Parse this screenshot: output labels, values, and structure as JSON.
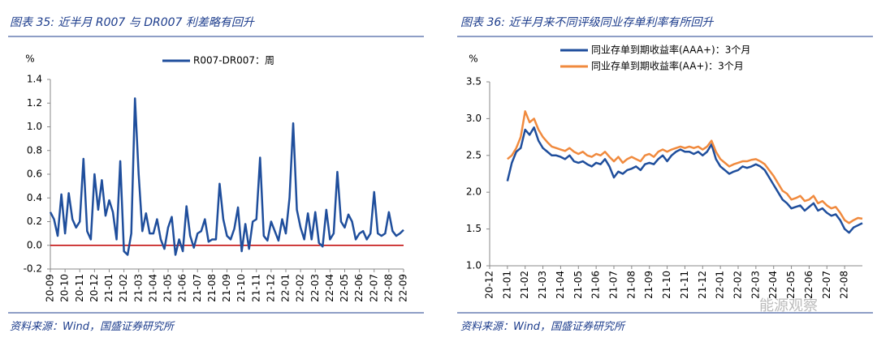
{
  "watermark": "能源观察",
  "chart_data": [
    {
      "type": "line",
      "title": "图表 35:  近半月 R007 与 DR007 利差略有回升",
      "source": "资料来源：Wind，国盛证券研究所",
      "y_unit": "%",
      "ylim": [
        -0.2,
        1.4
      ],
      "yticks": [
        -0.2,
        {
          "value": 0,
          "label": "0.0"
        },
        0.2,
        0.4,
        0.6,
        0.8,
        {
          "value": 1,
          "label": "1.0"
        },
        1.2,
        1.4
      ],
      "zero_line_color": "#c00000",
      "legend": "top",
      "categories": [
        "20-09",
        null,
        null,
        null,
        "20-10",
        null,
        null,
        null,
        "20-11",
        null,
        null,
        null,
        "20-12",
        null,
        null,
        null,
        "21-01",
        null,
        null,
        null,
        "21-02",
        null,
        null,
        null,
        "21-03",
        null,
        null,
        null,
        "21-04",
        null,
        null,
        null,
        "21-05",
        null,
        null,
        null,
        "21-06",
        null,
        null,
        null,
        "21-07",
        null,
        null,
        null,
        "21-08",
        null,
        null,
        null,
        "21-09",
        null,
        null,
        null,
        "21-10",
        null,
        null,
        null,
        "21-11",
        null,
        null,
        null,
        "21-12",
        null,
        null,
        null,
        "22-01",
        null,
        null,
        null,
        "22-02",
        null,
        null,
        null,
        "22-03",
        null,
        null,
        null,
        "22-04",
        null,
        null,
        null,
        "22-05",
        null,
        null,
        null,
        "22-06",
        null,
        null,
        null,
        "22-07",
        null,
        null,
        null,
        "22-08",
        null,
        null,
        null,
        "22-09"
      ],
      "series": [
        {
          "name": "R007-DR007：周",
          "color": "#1f4e9c",
          "values": [
            0.28,
            0.22,
            0.08,
            0.43,
            0.1,
            0.44,
            0.22,
            0.15,
            0.2,
            0.73,
            0.12,
            0.05,
            0.6,
            0.3,
            0.55,
            0.25,
            0.38,
            0.28,
            0.05,
            0.71,
            -0.05,
            -0.08,
            0.1,
            1.24,
            0.6,
            0.12,
            0.27,
            0.1,
            0.1,
            0.22,
            0.05,
            -0.03,
            0.15,
            0.24,
            -0.08,
            0.05,
            -0.05,
            0.33,
            0.08,
            -0.02,
            0.1,
            0.12,
            0.22,
            0.03,
            0.05,
            0.05,
            0.52,
            0.22,
            0.08,
            0.05,
            0.14,
            0.32,
            -0.05,
            0.18,
            -0.03,
            0.2,
            0.22,
            0.74,
            0.08,
            0.04,
            0.2,
            0.12,
            0.04,
            0.22,
            0.1,
            0.4,
            1.03,
            0.3,
            0.15,
            0.05,
            0.27,
            0.05,
            0.28,
            0.02,
            -0.01,
            0.3,
            0.05,
            0.1,
            0.62,
            0.2,
            0.15,
            0.26,
            0.2,
            0.05,
            0.1,
            0.12,
            0.05,
            0.1,
            0.45,
            0.1,
            0.08,
            0.1,
            0.28,
            0.12,
            0.08,
            0.1,
            0.13
          ]
        }
      ]
    },
    {
      "type": "line",
      "title": "图表 36:  近半月来不同评级同业存单利率有所回升",
      "source": "资料来源：Wind，国盛证券研究所",
      "y_unit": "%",
      "ylim": [
        1,
        3.5
      ],
      "yticks": [
        {
          "value": 1,
          "label": "1.0"
        },
        1.5,
        {
          "value": 2,
          "label": "2.0"
        },
        2.5,
        {
          "value": 3,
          "label": "3.0"
        },
        3.5
      ],
      "legend": "top",
      "categories": [
        "20-12",
        null,
        null,
        null,
        "21-01",
        null,
        null,
        null,
        "21-02",
        null,
        null,
        null,
        "21-03",
        null,
        null,
        null,
        "21-04",
        null,
        null,
        null,
        "21-05",
        null,
        null,
        null,
        "21-06",
        null,
        null,
        null,
        "21-07",
        null,
        null,
        null,
        "21-08",
        null,
        null,
        null,
        "21-09",
        null,
        null,
        null,
        "21-10",
        null,
        null,
        null,
        "21-11",
        null,
        null,
        null,
        "21-12",
        null,
        null,
        null,
        "22-01",
        null,
        null,
        null,
        "22-02",
        null,
        null,
        null,
        "22-03",
        null,
        null,
        null,
        "22-04",
        null,
        null,
        null,
        "22-05",
        null,
        null,
        null,
        "22-06",
        null,
        null,
        null,
        "22-07",
        null,
        null,
        null,
        "22-08",
        null,
        null,
        null,
        null
      ],
      "series": [
        {
          "name": "同业存单到期收益率(AAA+)：3个月",
          "color": "#1f4e9c",
          "values": [
            null,
            null,
            null,
            null,
            2.15,
            2.4,
            2.55,
            2.6,
            2.85,
            2.78,
            2.88,
            2.7,
            2.6,
            2.55,
            2.5,
            2.5,
            2.48,
            2.45,
            2.5,
            2.42,
            2.4,
            2.42,
            2.38,
            2.35,
            2.4,
            2.38,
            2.45,
            2.35,
            2.2,
            2.28,
            2.25,
            2.3,
            2.32,
            2.35,
            2.3,
            2.38,
            2.4,
            2.38,
            2.45,
            2.5,
            2.42,
            2.5,
            2.55,
            2.58,
            2.55,
            2.55,
            2.52,
            2.55,
            2.5,
            2.55,
            2.65,
            2.45,
            2.35,
            2.3,
            2.25,
            2.28,
            2.3,
            2.35,
            2.33,
            2.35,
            2.38,
            2.35,
            2.3,
            2.2,
            2.1,
            2.0,
            1.9,
            1.85,
            1.78,
            1.8,
            1.82,
            1.75,
            1.8,
            1.85,
            1.75,
            1.78,
            1.72,
            1.68,
            1.7,
            1.62,
            1.5,
            1.45,
            1.52,
            1.55,
            1.58
          ]
        },
        {
          "name": "同业存单到期收益率(AA+)：3个月",
          "color": "#f08a3e",
          "values": [
            null,
            null,
            null,
            null,
            2.45,
            2.5,
            2.6,
            2.75,
            3.1,
            2.95,
            3.0,
            2.85,
            2.75,
            2.68,
            2.62,
            2.6,
            2.58,
            2.56,
            2.6,
            2.55,
            2.52,
            2.55,
            2.5,
            2.48,
            2.52,
            2.5,
            2.55,
            2.48,
            2.42,
            2.48,
            2.4,
            2.45,
            2.48,
            2.45,
            2.42,
            2.5,
            2.52,
            2.48,
            2.55,
            2.58,
            2.55,
            2.58,
            2.6,
            2.62,
            2.6,
            2.62,
            2.6,
            2.62,
            2.58,
            2.62,
            2.7,
            2.55,
            2.45,
            2.4,
            2.35,
            2.38,
            2.4,
            2.42,
            2.42,
            2.44,
            2.45,
            2.42,
            2.38,
            2.3,
            2.22,
            2.12,
            2.02,
            1.98,
            1.9,
            1.92,
            1.95,
            1.88,
            1.9,
            1.95,
            1.85,
            1.88,
            1.82,
            1.78,
            1.8,
            1.72,
            1.62,
            1.58,
            1.62,
            1.65,
            1.64
          ]
        }
      ]
    }
  ]
}
